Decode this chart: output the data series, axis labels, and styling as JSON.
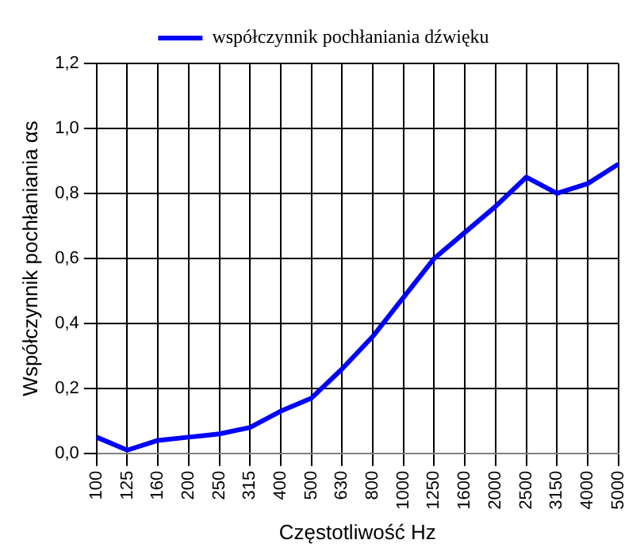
{
  "chart_data": {
    "type": "line",
    "xlabel": "Częstotliwość Hz",
    "ylabel": "Współczynnik pochłaniania αs",
    "categories": [
      "100",
      "125",
      "160",
      "200",
      "250",
      "315",
      "400",
      "500",
      "630",
      "800",
      "1000",
      "1250",
      "1600",
      "2000",
      "2500",
      "3150",
      "4000",
      "5000"
    ],
    "series": [
      {
        "name": "współczynnik pochłaniania dźwięku",
        "color": "#0000ff",
        "values": [
          0.05,
          0.01,
          0.04,
          0.05,
          0.06,
          0.08,
          0.13,
          0.17,
          0.26,
          0.36,
          0.48,
          0.6,
          0.68,
          0.76,
          0.85,
          0.8,
          0.83,
          0.89
        ]
      }
    ],
    "ylim": [
      0,
      1.2
    ],
    "yticks": [
      {
        "value": 0,
        "label": "0,0"
      },
      {
        "value": 0.2,
        "label": "0,2"
      },
      {
        "value": 0.4,
        "label": "0,4"
      },
      {
        "value": 0.6,
        "label": "0,6"
      },
      {
        "value": 0.8,
        "label": "0,8"
      },
      {
        "value": 1,
        "label": "1,0"
      },
      {
        "value": 1.2,
        "label": "1,2"
      }
    ],
    "grid": true,
    "legend": "top",
    "marker": "none",
    "line_style": "solid"
  }
}
